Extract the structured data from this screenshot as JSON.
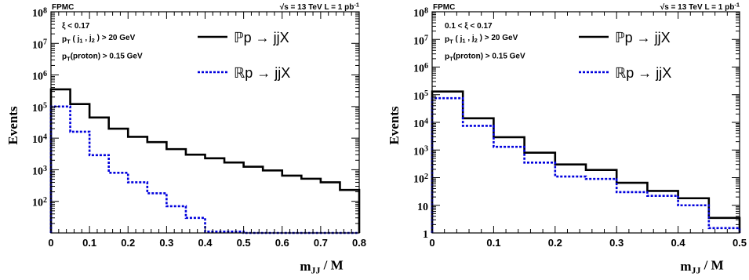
{
  "chart_data": [
    {
      "type": "histogram",
      "title": "",
      "xlabel": "m_JJ / M",
      "ylabel": "Events",
      "xlim": [
        0,
        0.8
      ],
      "ylim": [
        10,
        100000000
      ],
      "yscale": "log",
      "xticks": [
        "0",
        "0.1",
        "0.2",
        "0.3",
        "0.4",
        "0.5",
        "0.6",
        "0.7",
        "0.8"
      ],
      "yticks": [
        "10^2",
        "10^3",
        "10^4",
        "10^5",
        "10^6",
        "10^7",
        "10^8"
      ],
      "header_left": "FPMC",
      "header_right": "√s = 13 TeV  L = 1 pb⁻¹",
      "annotations": [
        "ξ < 0.17",
        "p_T ( j_1 , j_2 ) > 20 GeV",
        "p_T(proton) > 0.15 GeV"
      ],
      "legend_position": "top-right",
      "bin_edges": [
        0,
        0.05,
        0.1,
        0.15,
        0.2,
        0.25,
        0.3,
        0.35,
        0.4,
        0.45,
        0.5,
        0.55,
        0.6,
        0.65,
        0.7,
        0.75,
        0.8
      ],
      "series": [
        {
          "name": "ℙp → jjX",
          "color": "#000000",
          "style": "solid",
          "values": [
            350000,
            120000,
            45000,
            20000,
            11000,
            7500,
            4500,
            3000,
            2300,
            1700,
            1250,
            950,
            650,
            520,
            400,
            230
          ]
        },
        {
          "name": "ℝp → jjX",
          "color": "#0000dd",
          "style": "dotted",
          "values": [
            100000,
            16000,
            2900,
            800,
            400,
            180,
            70,
            30,
            11,
            11,
            10,
            10,
            10,
            10,
            10,
            10
          ]
        }
      ]
    },
    {
      "type": "histogram",
      "title": "",
      "xlabel": "m_JJ / M",
      "ylabel": "Events",
      "xlim": [
        0,
        0.5
      ],
      "ylim": [
        1,
        100000000
      ],
      "yscale": "log",
      "xticks": [
        "0",
        "0.1",
        "0.2",
        "0.3",
        "0.4",
        "0.5"
      ],
      "yticks": [
        "1",
        "10",
        "10^2",
        "10^3",
        "10^4",
        "10^5",
        "10^6",
        "10^7",
        "10^8"
      ],
      "header_left": "FPMC",
      "header_right": "√s = 13 TeV  L = 1 pb⁻¹",
      "annotations": [
        "0.1 < ξ < 0.17",
        "p_T ( j_1 , j_2 ) > 20 GeV",
        "p_T(proton) > 0.15 GeV"
      ],
      "legend_position": "top-right",
      "bin_edges": [
        0,
        0.05,
        0.1,
        0.15,
        0.2,
        0.25,
        0.3,
        0.35,
        0.4,
        0.45,
        0.5
      ],
      "series": [
        {
          "name": "ℙp → jjX",
          "color": "#000000",
          "style": "solid",
          "values": [
            130000,
            14000,
            2900,
            800,
            300,
            190,
            65,
            33,
            18,
            3.5
          ]
        },
        {
          "name": "ℝp → jjX",
          "color": "#0000dd",
          "style": "dotted",
          "values": [
            75000,
            7500,
            1300,
            350,
            110,
            90,
            30,
            22,
            10,
            1.5
          ]
        }
      ]
    }
  ]
}
